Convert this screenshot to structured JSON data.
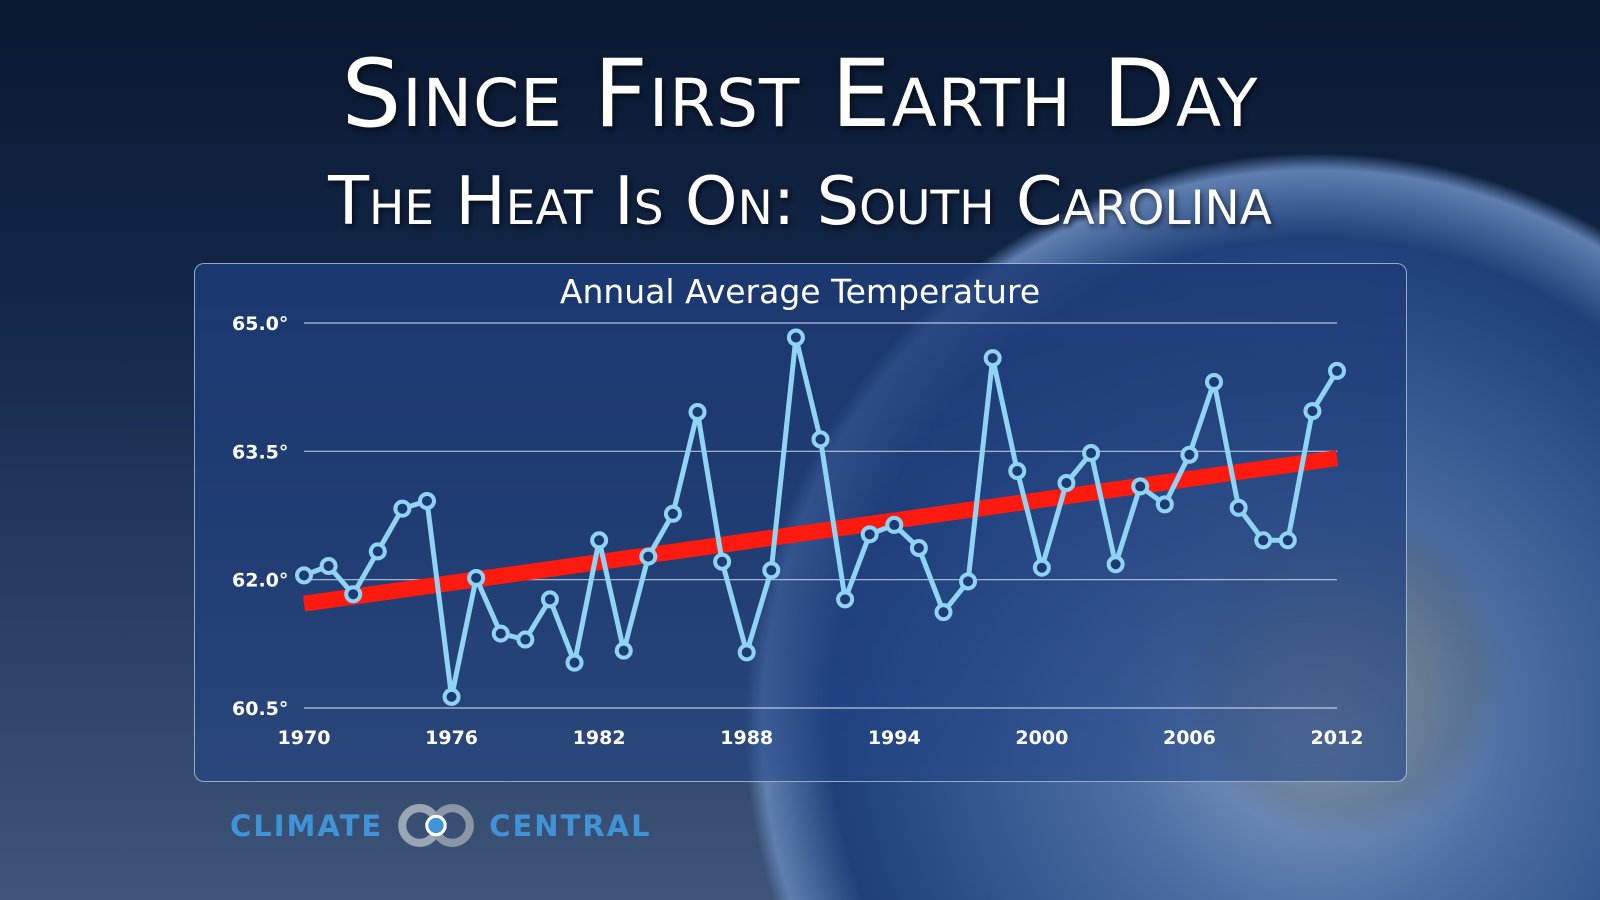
{
  "header": {
    "title": "Since First Earth Day",
    "subtitle": "The Heat Is On: South Carolina"
  },
  "logo": {
    "left": "CLIMATE",
    "right": "CENTRAL",
    "color": "#3f93d6"
  },
  "chart_data": {
    "type": "line",
    "title": "Annual Average Temperature",
    "xlabel": "",
    "ylabel": "",
    "x": [
      1970,
      1971,
      1972,
      1973,
      1974,
      1975,
      1976,
      1977,
      1978,
      1979,
      1980,
      1981,
      1982,
      1983,
      1984,
      1985,
      1986,
      1987,
      1988,
      1989,
      1990,
      1991,
      1992,
      1993,
      1994,
      1995,
      1996,
      1997,
      1998,
      1999,
      2000,
      2001,
      2002,
      2003,
      2004,
      2005,
      2006,
      2007,
      2008,
      2009,
      2010,
      2011,
      2012
    ],
    "series": [
      {
        "values": [
          62.05,
          62.16,
          61.83,
          62.33,
          62.83,
          62.92,
          60.63,
          62.02,
          61.37,
          61.3,
          61.77,
          61.03,
          62.46,
          61.17,
          62.27,
          62.77,
          63.96,
          62.21,
          61.15,
          62.11,
          64.83,
          63.64,
          61.77,
          62.53,
          62.64,
          62.37,
          61.62,
          61.98,
          64.59,
          63.27,
          62.14,
          63.13,
          63.48,
          62.18,
          63.09,
          62.88,
          63.46,
          64.31,
          62.84,
          62.46,
          62.46,
          63.97,
          64.44
        ],
        "color": "#8fd4f5"
      }
    ],
    "trend": {
      "x": [
        1970,
        2012
      ],
      "y": [
        61.72,
        63.42
      ],
      "color": "#ff1a10"
    },
    "xlim": [
      1970,
      2012
    ],
    "ylim": [
      60.5,
      65.0
    ],
    "xticks": [
      "1970",
      "1976",
      "1982",
      "1988",
      "1994",
      "2000",
      "2006",
      "2012"
    ],
    "yticks": [
      "65.0°",
      "63.5°",
      "62.0°",
      "60.5°"
    ],
    "grid": true
  }
}
